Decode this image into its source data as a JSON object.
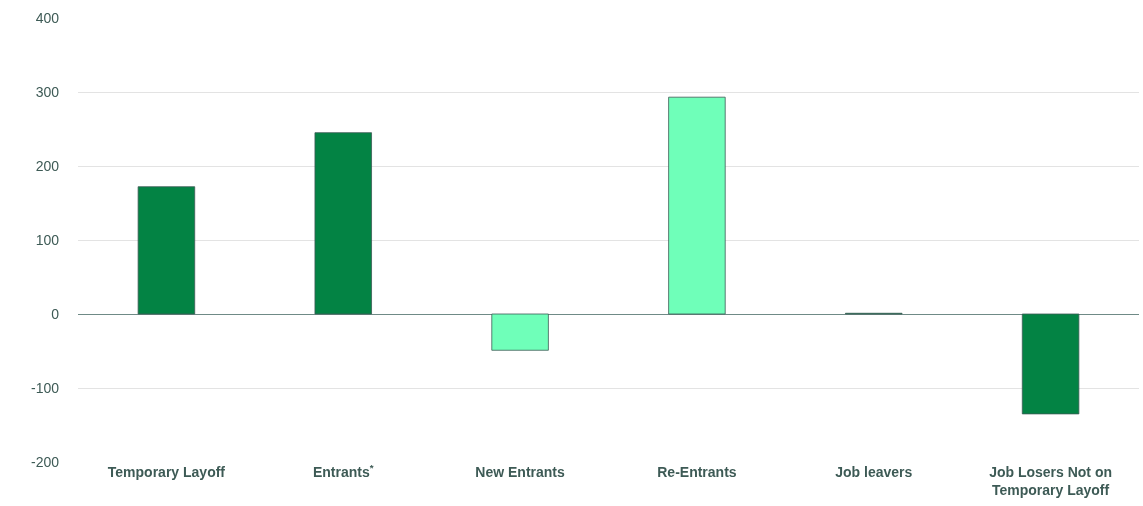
{
  "chart_data": {
    "type": "bar",
    "categories": [
      "Temporary Layoff",
      "Entrants$^{*}$",
      "New Entrants",
      "Re-Entrants",
      "Job leavers",
      "Job Losers Not on Temporary Layoff"
    ],
    "values": [
      172,
      245,
      -49,
      293,
      1,
      -135
    ],
    "colors": [
      "#038344",
      "#038344",
      "#6fffb9",
      "#6fffb9",
      "#038344",
      "#038344"
    ],
    "ylim": [
      -200,
      400
    ],
    "yticks": [
      -200,
      -100,
      0,
      100,
      200,
      300,
      400
    ],
    "grid": "y"
  }
}
